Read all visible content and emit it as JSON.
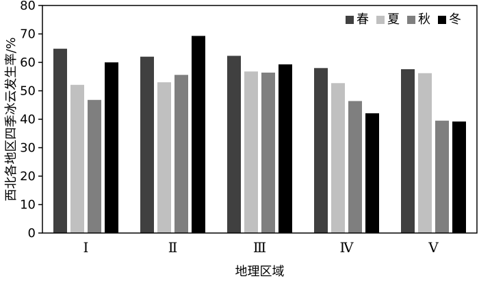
{
  "chart_data": {
    "type": "bar",
    "title": "",
    "xlabel": "地理区域",
    "ylabel": "西北各地区四季冰云发生率/%",
    "ylim": [
      0,
      80
    ],
    "yticks": [
      0,
      10,
      20,
      30,
      40,
      50,
      60,
      70,
      80
    ],
    "categories": [
      "Ⅰ",
      "Ⅱ",
      "Ⅲ",
      "Ⅳ",
      "Ⅴ"
    ],
    "legend_position": "top-right",
    "grid": false,
    "series": [
      {
        "name": "春",
        "color": "#404040",
        "values": [
          64.8,
          62.0,
          62.3,
          58.0,
          57.6
        ]
      },
      {
        "name": "夏",
        "color": "#c0c0c0",
        "values": [
          52.1,
          53.0,
          56.8,
          52.7,
          56.2
        ]
      },
      {
        "name": "秋",
        "color": "#7f7f7f",
        "values": [
          46.8,
          55.6,
          56.4,
          46.4,
          39.5
        ]
      },
      {
        "name": "冬",
        "color": "#000000",
        "values": [
          60.0,
          69.3,
          59.3,
          42.1,
          39.2
        ]
      }
    ]
  }
}
